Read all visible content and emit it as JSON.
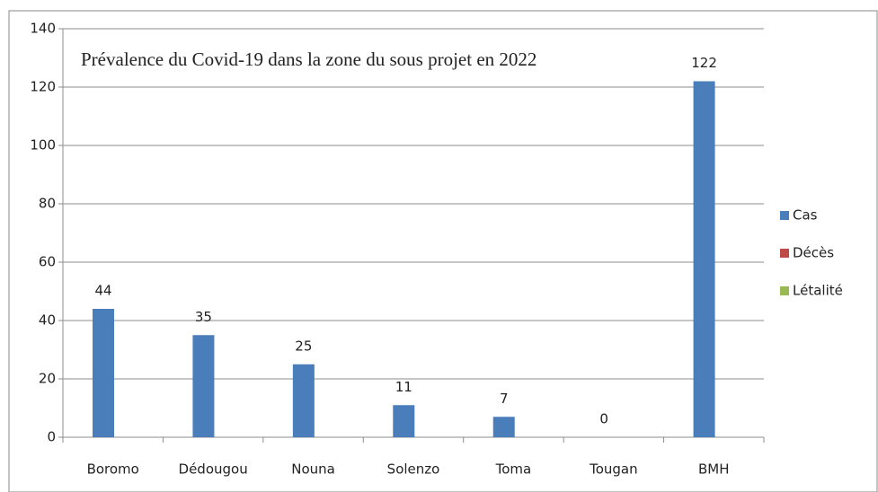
{
  "chart_data": {
    "type": "bar",
    "title": "Prévalence du Covid-19 dans la zone du sous projet en 2022",
    "categories": [
      "Boromo",
      "Dédougou",
      "Nouna",
      "Solenzo",
      "Toma",
      "Tougan",
      "BMH"
    ],
    "series": [
      {
        "name": "Cas",
        "color": "#4a7ebb",
        "values": [
          44,
          35,
          25,
          11,
          7,
          0,
          122
        ]
      },
      {
        "name": "Décès",
        "color": "#be4b48",
        "values": [
          0,
          0,
          0,
          0,
          0,
          0,
          0
        ]
      },
      {
        "name": "Létalité",
        "color": "#98b954",
        "values": [
          0,
          0,
          0,
          0,
          0,
          0,
          0
        ]
      }
    ],
    "ylim": [
      0,
      140
    ],
    "yticks": [
      0,
      20,
      40,
      60,
      80,
      100,
      120,
      140
    ],
    "grid": true,
    "legend": "right",
    "data_labels_series": "Cas"
  }
}
